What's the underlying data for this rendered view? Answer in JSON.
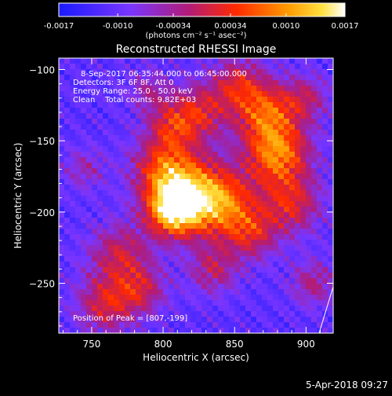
{
  "colorbar": {
    "tick_labels": [
      "-0.0017",
      "-0.0010",
      "-0.00034",
      "0.00034",
      "0.0010",
      "0.0017"
    ],
    "tick_values": [
      -0.0017,
      -0.001,
      -0.00034,
      0.00034,
      0.001,
      0.0017
    ],
    "range": [
      -0.0017,
      0.0017
    ],
    "units": "(photons cm⁻² s⁻¹ asec⁻²)",
    "colormap": [
      "#1a1aff",
      "#7a36ff",
      "#b01c7a",
      "#ff2a00",
      "#ff9a00",
      "#ffe040",
      "#ffffff"
    ]
  },
  "chart_data": {
    "type": "heatmap",
    "title": "Reconstructed RHESSI Image",
    "xlabel": "Heliocentric X (arcsec)",
    "ylabel": "Heliocentric Y (arcsec)",
    "xlim": [
      727,
      919
    ],
    "ylim": [
      -285,
      -92
    ],
    "x_ticks": [
      750,
      800,
      850,
      900
    ],
    "y_ticks": [
      -100,
      -150,
      -200,
      -250
    ],
    "x_tick_labels": [
      "750",
      "800",
      "850",
      "900"
    ],
    "y_tick_labels": [
      "−100",
      "−150",
      "−200",
      "−250"
    ],
    "annotations": [
      "8-Sep-2017 06:35:44.000 to 06:45:00.000",
      "Detectors: 3F 6F 8F, Att 0",
      "Energy Range: 25.0 - 50.0 keV",
      "Clean    Total counts: 9.82E+03"
    ],
    "peak_label": "Position of Peak = [807,-199]",
    "peak": [
      807,
      -199
    ]
  },
  "footer": {
    "date": "5-Apr-2018 09:27"
  }
}
